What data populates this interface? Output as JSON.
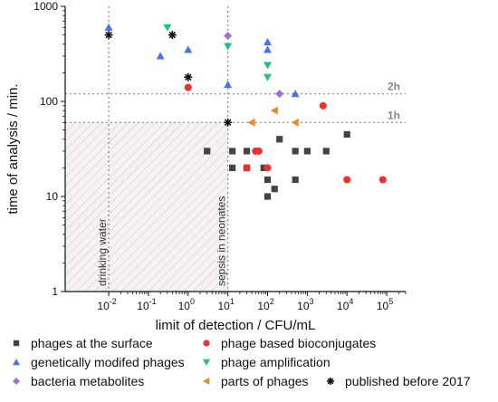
{
  "chart_data": {
    "type": "scatter",
    "x_scale": "log",
    "y_scale": "log",
    "xlim": [
      0.0008,
      300000
    ],
    "ylim": [
      1,
      1000
    ],
    "xlabel": "limit of detection / CFU/mL",
    "ylabel": "time of analysis / min.",
    "x_ticks": [
      {
        "value": 0.01,
        "base": "10",
        "exp": "-2"
      },
      {
        "value": 0.1,
        "base": "10",
        "exp": "-1"
      },
      {
        "value": 1,
        "base": "10",
        "exp": "0"
      },
      {
        "value": 10,
        "base": "10",
        "exp": "1"
      },
      {
        "value": 100,
        "base": "10",
        "exp": "2"
      },
      {
        "value": 1000,
        "base": "10",
        "exp": "3"
      },
      {
        "value": 10000,
        "base": "10",
        "exp": "4"
      },
      {
        "value": 100000,
        "base": "10",
        "exp": "5"
      }
    ],
    "y_ticks": [
      {
        "value": 1,
        "label": "1"
      },
      {
        "value": 10,
        "label": "10"
      },
      {
        "value": 100,
        "label": "100"
      },
      {
        "value": 1000,
        "label": "1000"
      }
    ],
    "reference_lines": [
      {
        "orientation": "horizontal",
        "value": 120,
        "label": "2h"
      },
      {
        "orientation": "horizontal",
        "value": 60,
        "label": "1h"
      },
      {
        "orientation": "vertical",
        "value": 0.01,
        "label": "drinking water"
      },
      {
        "orientation": "vertical",
        "value": 10,
        "label": "sepsis in neonates"
      }
    ],
    "shaded_region": {
      "x": [
        0.0008,
        10
      ],
      "y": [
        1,
        60
      ],
      "pattern": "diagonal hatch"
    },
    "legend_position": "bottom",
    "series": [
      {
        "name": "phages at the surface",
        "marker": "square",
        "color": "#444444",
        "points": [
          [
            3,
            30
          ],
          [
            13,
            30
          ],
          [
            13,
            20
          ],
          [
            30,
            30
          ],
          [
            30,
            20
          ],
          [
            80,
            20
          ],
          [
            100,
            15
          ],
          [
            100,
            10
          ],
          [
            150,
            12
          ],
          [
            200,
            40
          ],
          [
            500,
            30
          ],
          [
            500,
            15
          ],
          [
            1000,
            30
          ],
          [
            3000,
            30
          ],
          [
            10000,
            45
          ]
        ]
      },
      {
        "name": "phage based bioconjugates",
        "marker": "circle",
        "color": "#f03030",
        "points": [
          [
            1,
            140
          ],
          [
            2500,
            90
          ],
          [
            50,
            30
          ],
          [
            60,
            30
          ],
          [
            30,
            20
          ],
          [
            100,
            20
          ],
          [
            10000,
            15
          ],
          [
            80000,
            15
          ]
        ]
      },
      {
        "name": "genetically modifed phages",
        "marker": "triangle-up",
        "color": "#4a72f0",
        "points": [
          [
            0.01,
            600
          ],
          [
            0.2,
            300
          ],
          [
            1,
            350
          ],
          [
            10,
            150
          ],
          [
            100,
            420
          ],
          [
            100,
            350
          ],
          [
            500,
            120
          ]
        ]
      },
      {
        "name": "phage amplification",
        "marker": "triangle-down",
        "color": "#22c08a",
        "points": [
          [
            0.3,
            600
          ],
          [
            10,
            380
          ],
          [
            100,
            240
          ],
          [
            100,
            180
          ]
        ]
      },
      {
        "name": "bacteria metabolites",
        "marker": "diamond",
        "color": "#a070d8",
        "points": [
          [
            10,
            490
          ],
          [
            200,
            120
          ]
        ]
      },
      {
        "name": "parts of phages",
        "marker": "triangle-left",
        "color": "#f08a20",
        "points": [
          [
            40,
            60
          ],
          [
            150,
            80
          ],
          [
            500,
            60
          ]
        ]
      },
      {
        "name": "published before 2017",
        "marker": "asterisk",
        "color": "#111111",
        "points": [
          [
            0.01,
            500
          ],
          [
            0.4,
            500
          ],
          [
            1,
            180
          ],
          [
            10,
            60
          ]
        ]
      }
    ]
  }
}
